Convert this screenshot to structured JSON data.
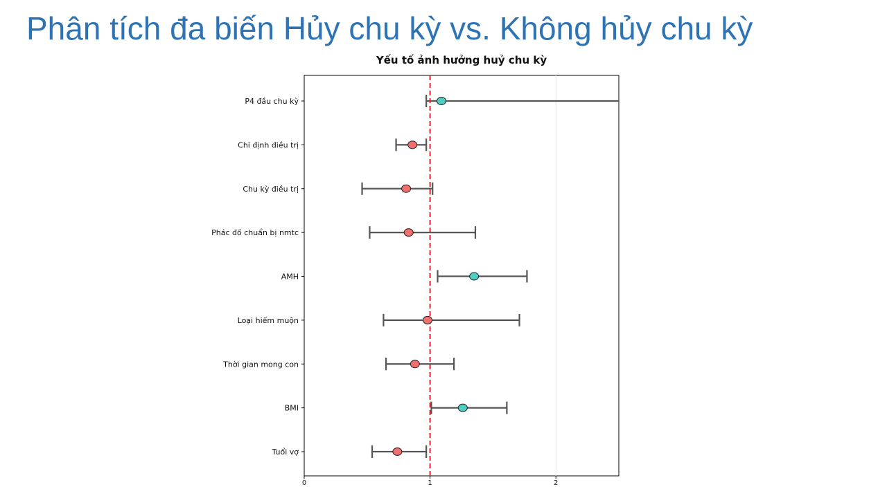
{
  "slide": {
    "title": "Phân tích đa biến Hủy chu kỳ vs. Không hủy chu kỳ"
  },
  "colors": {
    "title_blue": "#2E74B5",
    "positive": "#4ECDC4",
    "negative": "#F07070",
    "reference_line": "#E8202A",
    "errorbar": "#555555"
  },
  "chart_data": {
    "type": "forest",
    "title": "Yếu tố ảnh hưởng huỷ chu kỳ",
    "reference_value": 1,
    "reference_line_style": "dashed",
    "xlim": [
      0,
      2.5
    ],
    "x_ticks": [
      "0",
      "1",
      "2"
    ],
    "x_tick_values": [
      0,
      1,
      2
    ],
    "grid": "vertical gridlines at major ticks",
    "factors": [
      {
        "label": "P4 đầu chu kỳ",
        "estimate": 1.09,
        "ci_low": 0.97,
        "ci_high": 2.5,
        "color": "positive"
      },
      {
        "label": "Chỉ định điều trị",
        "estimate": 0.86,
        "ci_low": 0.73,
        "ci_high": 0.97,
        "color": "negative"
      },
      {
        "label": "Chu kỳ điều trị",
        "estimate": 0.81,
        "ci_low": 0.46,
        "ci_high": 1.02,
        "color": "negative"
      },
      {
        "label": "Phác đồ chuẩn bị nmtc",
        "estimate": 0.83,
        "ci_low": 0.52,
        "ci_high": 1.36,
        "color": "negative"
      },
      {
        "label": "AMH",
        "estimate": 1.35,
        "ci_low": 1.06,
        "ci_high": 1.77,
        "color": "positive"
      },
      {
        "label": "Loại hiếm muộn",
        "estimate": 0.98,
        "ci_low": 0.63,
        "ci_high": 1.71,
        "color": "negative"
      },
      {
        "label": "Thời gian mong con",
        "estimate": 0.88,
        "ci_low": 0.65,
        "ci_high": 1.19,
        "color": "negative"
      },
      {
        "label": "BMI",
        "estimate": 1.26,
        "ci_low": 1.01,
        "ci_high": 1.61,
        "color": "positive"
      },
      {
        "label": "Tuổi vợ",
        "estimate": 0.74,
        "ci_low": 0.54,
        "ci_high": 0.97,
        "color": "negative"
      }
    ]
  }
}
